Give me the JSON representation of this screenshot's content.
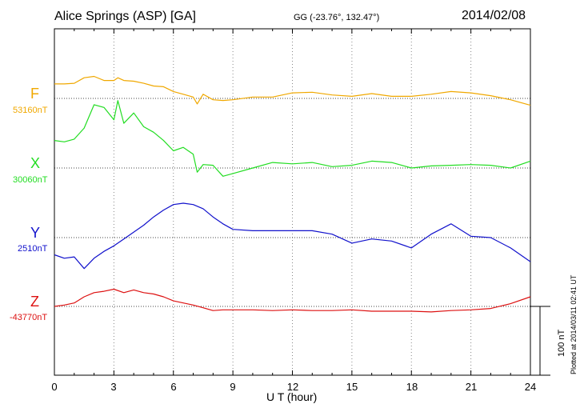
{
  "header": {
    "station": "Alice Springs (ASP)  [GA]",
    "coords": "GG (-23.76°, 132.47°)",
    "date": "2014/02/08"
  },
  "footer": "Plotted at 2014/03/11 02:41 UT",
  "scale_label": "100 nT",
  "components": [
    {
      "letter": "F",
      "baseline": "53160nT",
      "color": "#f0a800"
    },
    {
      "letter": "X",
      "baseline": "30060nT",
      "color": "#22dd22"
    },
    {
      "letter": "Y",
      "baseline": "2510nT",
      "color": "#1111cc"
    },
    {
      "letter": "Z",
      "baseline": "-43770nT",
      "color": "#dd1111"
    }
  ],
  "chart_data": {
    "type": "line",
    "xlabel": "U T (hour)",
    "xlim": [
      0,
      24
    ],
    "xticks": [
      "0",
      "3",
      "6",
      "9",
      "12",
      "15",
      "18",
      "21",
      "24"
    ],
    "y_units": "nT",
    "series": [
      {
        "name": "F",
        "baseline_nT": 53160,
        "x": [
          0,
          0.5,
          1,
          1.5,
          2,
          2.5,
          3,
          3.2,
          3.5,
          4,
          4.5,
          5,
          5.5,
          6,
          6.5,
          7,
          7.2,
          7.5,
          8,
          8.5,
          9,
          10,
          11,
          12,
          13,
          14,
          15,
          16,
          17,
          18,
          19,
          20,
          21,
          22,
          23,
          24
        ],
        "y": [
          21,
          21,
          22,
          30,
          32,
          26,
          26,
          30,
          26,
          25,
          22,
          18,
          17,
          10,
          6,
          2,
          -8,
          6,
          -2,
          -3,
          -2,
          2,
          2,
          8,
          9,
          5,
          3,
          7,
          3,
          3,
          6,
          10,
          8,
          4,
          -2,
          -10
        ]
      },
      {
        "name": "X",
        "baseline_nT": 30060,
        "x": [
          0,
          0.5,
          1,
          1.5,
          2,
          2.5,
          3,
          3.2,
          3.5,
          4,
          4.5,
          5,
          5.5,
          6,
          6.5,
          7,
          7.2,
          7.5,
          8,
          8.5,
          9,
          10,
          11,
          12,
          13,
          14,
          15,
          16,
          17,
          18,
          19,
          20,
          21,
          22,
          23,
          24
        ],
        "y": [
          40,
          38,
          42,
          58,
          92,
          88,
          70,
          98,
          65,
          80,
          60,
          52,
          40,
          25,
          30,
          20,
          -6,
          5,
          4,
          -12,
          -8,
          0,
          8,
          6,
          8,
          2,
          4,
          10,
          8,
          0,
          3,
          4,
          5,
          4,
          0,
          10
        ]
      },
      {
        "name": "Y",
        "baseline_nT": 2510,
        "x": [
          0,
          0.5,
          1,
          1.5,
          2,
          2.5,
          3,
          3.5,
          4,
          4.5,
          5,
          5.5,
          6,
          6.5,
          7,
          7.5,
          8,
          8.5,
          9,
          10,
          11,
          12,
          13,
          14,
          15,
          16,
          17,
          18,
          19,
          20,
          21,
          22,
          23,
          24
        ],
        "y": [
          -25,
          -30,
          -28,
          -45,
          -30,
          -20,
          -12,
          -2,
          8,
          18,
          30,
          40,
          48,
          50,
          48,
          42,
          30,
          20,
          12,
          10,
          10,
          10,
          10,
          5,
          -8,
          -2,
          -5,
          -15,
          5,
          20,
          2,
          0,
          -15,
          -35
        ]
      },
      {
        "name": "Z",
        "baseline_nT": -43770,
        "x": [
          0,
          0.5,
          1,
          1.5,
          2,
          2.5,
          3,
          3.5,
          4,
          4.5,
          5,
          5.5,
          6,
          6.5,
          7,
          7.5,
          8,
          8.5,
          9,
          10,
          11,
          12,
          13,
          14,
          15,
          16,
          17,
          18,
          19,
          20,
          21,
          22,
          23,
          24
        ],
        "y": [
          0,
          2,
          5,
          14,
          20,
          22,
          25,
          20,
          24,
          20,
          18,
          14,
          8,
          5,
          2,
          -2,
          -6,
          -5,
          -5,
          -5,
          -6,
          -5,
          -6,
          -6,
          -5,
          -7,
          -7,
          -7,
          -8,
          -6,
          -5,
          -3,
          4,
          14
        ]
      }
    ],
    "scale_bar_nT": 100
  }
}
